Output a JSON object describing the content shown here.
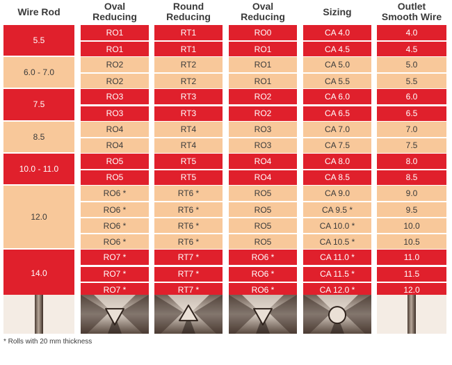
{
  "headers": {
    "wire_rod": "Wire Rod",
    "col1": "Oval\nReducing",
    "col2": "Round\nReducing",
    "col3": "Oval\nReducing",
    "col4": "Sizing",
    "col5": "Outlet\nSmooth Wire"
  },
  "groups": [
    {
      "wire_rod": "5.5",
      "color": "red",
      "rows": [
        [
          "RO1",
          "RT1",
          "RO0",
          "CA 4.0",
          "4.0"
        ],
        [
          "RO1",
          "RT1",
          "RO1",
          "CA 4.5",
          "4.5"
        ]
      ]
    },
    {
      "wire_rod": "6.0 - 7.0",
      "color": "peach",
      "rows": [
        [
          "RO2",
          "RT2",
          "RO1",
          "CA 5.0",
          "5.0"
        ],
        [
          "RO2",
          "RT2",
          "RO1",
          "CA 5.5",
          "5.5"
        ]
      ]
    },
    {
      "wire_rod": "7.5",
      "color": "red",
      "rows": [
        [
          "RO3",
          "RT3",
          "RO2",
          "CA 6.0",
          "6.0"
        ],
        [
          "RO3",
          "RT3",
          "RO2",
          "CA 6.5",
          "6.5"
        ]
      ]
    },
    {
      "wire_rod": "8.5",
      "color": "peach",
      "rows": [
        [
          "RO4",
          "RT4",
          "RO3",
          "CA 7.0",
          "7.0"
        ],
        [
          "RO4",
          "RT4",
          "RO3",
          "CA 7.5",
          "7.5"
        ]
      ]
    },
    {
      "wire_rod": "10.0 - 11.0",
      "color": "red",
      "rows": [
        [
          "RO5",
          "RT5",
          "RO4",
          "CA 8.0",
          "8.0"
        ],
        [
          "RO5",
          "RT5",
          "RO4",
          "CA 8.5",
          "8.5"
        ]
      ]
    },
    {
      "wire_rod": "12.0",
      "color": "peach",
      "rows": [
        [
          "RO6 *",
          "RT6 *",
          "RO5",
          "CA 9.0",
          "9.0"
        ],
        [
          "RO6 *",
          "RT6 *",
          "RO5",
          "CA 9.5 *",
          "9.5"
        ],
        [
          "RO6 *",
          "RT6 *",
          "RO5",
          "CA 10.0 *",
          "10.0"
        ],
        [
          "RO6 *",
          "RT6 *",
          "RO5",
          "CA 10.5 *",
          "10.5"
        ]
      ]
    },
    {
      "wire_rod": "14.0",
      "color": "red",
      "rows": [
        [
          "RO7 *",
          "RT7 *",
          "RO6 *",
          "CA 11.0 *",
          "11.0"
        ],
        [
          "RO7 *",
          "RT7 *",
          "RO6 *",
          "CA 11.5 *",
          "11.5"
        ],
        [
          "RO7 *",
          "RT7 *",
          "RO6 *",
          "CA 12.0 *",
          "12.0"
        ]
      ]
    }
  ],
  "colors": {
    "red": "#e0202c",
    "peach": "#f8c89a",
    "text_dark": "#3a3a3a"
  },
  "images": [
    "wire-rod-photo",
    "oval-roll-photo",
    "round-roll-photo",
    "oval-roll-photo",
    "sizing-roll-photo",
    "smooth-wire-photo"
  ],
  "footnote": "* Rolls with 20 mm thickness"
}
